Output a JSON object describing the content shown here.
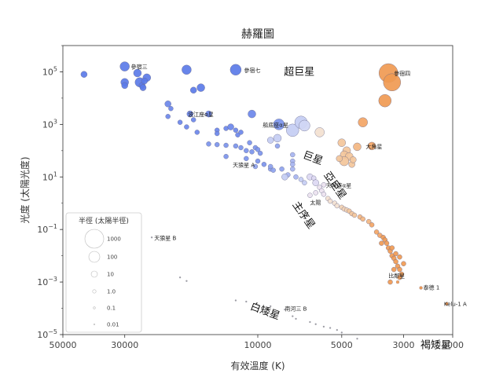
{
  "chart_data": {
    "type": "scatter",
    "title": "赫羅圖",
    "xlabel": "有效溫度 (K)",
    "ylabel": "光度 (太陽光度)",
    "xscale": "log-reversed",
    "yscale": "log",
    "xlim": [
      50000,
      2000
    ],
    "ylim": [
      1e-05,
      1000000
    ],
    "x_ticks": [
      50000,
      30000,
      10000,
      5000,
      3000,
      2000
    ],
    "x_tick_labels": [
      "50000",
      "30000",
      "10000",
      "5000",
      "3000",
      "2000"
    ],
    "y_ticks": [
      {
        "value": 100000,
        "mant": "10",
        "exp": "5"
      },
      {
        "value": 1000,
        "mant": "10",
        "exp": "3"
      },
      {
        "value": 10,
        "mant": "10",
        "exp": "1"
      },
      {
        "value": 0.1,
        "mant": "10",
        "exp": "−1"
      },
      {
        "value": 0.001,
        "mant": "10",
        "exp": "−3"
      },
      {
        "value": 1e-05,
        "mant": "10",
        "exp": "−5"
      }
    ],
    "stars": [
      {
        "t": 42000,
        "l": 80000,
        "r": 4,
        "c": "#5b7be8"
      },
      {
        "t": 30000,
        "l": 160000,
        "r": 6,
        "c": "#5b7be8"
      },
      {
        "t": 30000,
        "l": 40000,
        "r": 5,
        "c": "#5b7be8"
      },
      {
        "t": 30000,
        "l": 30000,
        "r": 4,
        "c": "#5b7be8"
      },
      {
        "t": 27000,
        "l": 90000,
        "r": 5,
        "c": "#5b7be8"
      },
      {
        "t": 26500,
        "l": 40000,
        "r": 6,
        "c": "#5b7be8"
      },
      {
        "t": 26000,
        "l": 30000,
        "r": 4,
        "c": "#5b7be8"
      },
      {
        "t": 25800,
        "l": 25000,
        "r": 4,
        "c": "#5b7be8"
      },
      {
        "t": 25000,
        "l": 60000,
        "r": 5,
        "c": "#5b7be8"
      },
      {
        "t": 25500,
        "l": 45000,
        "r": 4,
        "c": "#5b7be8"
      },
      {
        "t": 18000,
        "l": 120000,
        "r": 6,
        "c": "#5b7be8"
      },
      {
        "t": 17000,
        "l": 20000,
        "r": 4,
        "c": "#5b7be8"
      },
      {
        "t": 16000,
        "l": 25000,
        "r": 5,
        "c": "#5b7be8"
      },
      {
        "t": 12000,
        "l": 120000,
        "r": 7,
        "c": "#5b7be8"
      },
      {
        "t": 21000,
        "l": 6000,
        "r": 4,
        "c": "#6b87ea"
      },
      {
        "t": 20500,
        "l": 4000,
        "r": 3,
        "c": "#6b87ea"
      },
      {
        "t": 21000,
        "l": 2000,
        "r": 3,
        "c": "#6b87ea"
      },
      {
        "t": 19000,
        "l": 1200,
        "r": 3,
        "c": "#6b87ea"
      },
      {
        "t": 18000,
        "l": 800,
        "r": 3,
        "c": "#6b87ea"
      },
      {
        "t": 17500,
        "l": 2500,
        "r": 4,
        "c": "#6b87ea"
      },
      {
        "t": 17000,
        "l": 1500,
        "r": 3,
        "c": "#6b87ea"
      },
      {
        "t": 16500,
        "l": 500,
        "r": 3,
        "c": "#6b87ea"
      },
      {
        "t": 15000,
        "l": 2500,
        "r": 4,
        "c": "#6b87ea"
      },
      {
        "t": 14000,
        "l": 600,
        "r": 3,
        "c": "#6b87ea"
      },
      {
        "t": 14000,
        "l": 450,
        "r": 3,
        "c": "#6b87ea"
      },
      {
        "t": 13000,
        "l": 700,
        "r": 3,
        "c": "#6b87ea"
      },
      {
        "t": 12500,
        "l": 800,
        "r": 4,
        "c": "#6b87ea"
      },
      {
        "t": 12000,
        "l": 600,
        "r": 3,
        "c": "#6b87ea"
      },
      {
        "t": 11800,
        "l": 400,
        "r": 3,
        "c": "#6b87ea"
      },
      {
        "t": 11500,
        "l": 500,
        "r": 3,
        "c": "#6b87ea"
      },
      {
        "t": 10500,
        "l": 2500,
        "r": 5,
        "c": "#6b87ea"
      },
      {
        "t": 15000,
        "l": 180,
        "r": 3,
        "c": "#7b94ec"
      },
      {
        "t": 14000,
        "l": 170,
        "r": 3,
        "c": "#7b94ec"
      },
      {
        "t": 13000,
        "l": 160,
        "r": 3,
        "c": "#7b94ec"
      },
      {
        "t": 12000,
        "l": 150,
        "r": 3,
        "c": "#7b94ec"
      },
      {
        "t": 11500,
        "l": 130,
        "r": 3,
        "c": "#7b94ec"
      },
      {
        "t": 11000,
        "l": 100,
        "r": 3,
        "c": "#7b94ec"
      },
      {
        "t": 10700,
        "l": 200,
        "r": 3,
        "c": "#7b94ec"
      },
      {
        "t": 10500,
        "l": 90,
        "r": 3,
        "c": "#7b94ec"
      },
      {
        "t": 10200,
        "l": 130,
        "r": 3,
        "c": "#7b94ec"
      },
      {
        "t": 10000,
        "l": 110,
        "r": 3,
        "c": "#7b94ec"
      },
      {
        "t": 9800,
        "l": 80,
        "r": 3,
        "c": "#7b94ec"
      },
      {
        "t": 13000,
        "l": 60,
        "r": 3,
        "c": "#7b94ec"
      },
      {
        "t": 11000,
        "l": 50,
        "r": 3,
        "c": "#7b94ec"
      },
      {
        "t": 10000,
        "l": 40,
        "r": 3,
        "c": "#7b94ec"
      },
      {
        "t": 9500,
        "l": 30,
        "r": 3,
        "c": "#7b94ec"
      },
      {
        "t": 9000,
        "l": 20,
        "r": 3,
        "c": "#8ea3ee"
      },
      {
        "t": 8500,
        "l": 150,
        "r": 3,
        "c": "#8ea3ee"
      },
      {
        "t": 9000,
        "l": 25,
        "r": 3,
        "c": "#8ea3ee"
      },
      {
        "t": 8200,
        "l": 20,
        "r": 3,
        "c": "#8ea3ee"
      },
      {
        "t": 10200,
        "l": 25,
        "r": 3,
        "c": "#8ea3ee"
      },
      {
        "t": 8800,
        "l": 18,
        "r": 3,
        "c": "#8ea3ee"
      },
      {
        "t": 7500,
        "l": 70,
        "r": 3,
        "c": "#a6b4f0"
      },
      {
        "t": 7500,
        "l": 40,
        "r": 3,
        "c": "#a6b4f0"
      },
      {
        "t": 7500,
        "l": 30,
        "r": 3,
        "c": "#a6b4f0"
      },
      {
        "t": 7500,
        "l": 20,
        "r": 3,
        "c": "#a6b4f0"
      },
      {
        "t": 7800,
        "l": 12,
        "r": 3,
        "c": "#a6b4f0"
      },
      {
        "t": 7300,
        "l": 10,
        "r": 3,
        "c": "#a6b4f0"
      },
      {
        "t": 8000,
        "l": 10,
        "r": 4,
        "c": "#c4cdf3"
      },
      {
        "t": 7000,
        "l": 8,
        "r": 3,
        "c": "#c4cdf3"
      },
      {
        "t": 6800,
        "l": 6,
        "r": 3,
        "c": "#c4cdf3"
      },
      {
        "t": 6500,
        "l": 10,
        "r": 4,
        "c": "#dcd8f2"
      },
      {
        "t": 6300,
        "l": 9,
        "r": 3,
        "c": "#dcd8f2"
      },
      {
        "t": 6200,
        "l": 6,
        "r": 4,
        "c": "#dcd8f2"
      },
      {
        "t": 6000,
        "l": 4,
        "r": 3,
        "c": "#ece2ef"
      },
      {
        "t": 5900,
        "l": 3,
        "r": 3,
        "c": "#ece2ef"
      },
      {
        "t": 5800,
        "l": 5,
        "r": 3,
        "c": "#ece2ef"
      },
      {
        "t": 6500,
        "l": 2,
        "r": 3,
        "c": "#ece2ef"
      },
      {
        "t": 6200,
        "l": 2.5,
        "r": 3,
        "c": "#ece2ef"
      },
      {
        "t": 5800,
        "l": 2.2,
        "r": 3,
        "c": "#ece2ef"
      },
      {
        "t": 5600,
        "l": 1.5,
        "r": 3,
        "c": "#f3e1d0"
      },
      {
        "t": 5500,
        "l": 1.2,
        "r": 3,
        "c": "#f3e1d0"
      },
      {
        "t": 5300,
        "l": 1.0,
        "r": 3,
        "c": "#f3e1d0"
      },
      {
        "t": 5200,
        "l": 0.8,
        "r": 3,
        "c": "#f3e1d0"
      },
      {
        "t": 5000,
        "l": 0.7,
        "r": 3,
        "c": "#f3d3b3"
      },
      {
        "t": 4900,
        "l": 0.6,
        "r": 3,
        "c": "#f3d3b3"
      },
      {
        "t": 4800,
        "l": 0.55,
        "r": 3,
        "c": "#f3d3b3"
      },
      {
        "t": 4700,
        "l": 0.5,
        "r": 3,
        "c": "#f3c59a"
      },
      {
        "t": 4600,
        "l": 0.4,
        "r": 3,
        "c": "#f3c59a"
      },
      {
        "t": 4500,
        "l": 0.35,
        "r": 3,
        "c": "#f3c59a"
      },
      {
        "t": 4300,
        "l": 0.3,
        "r": 3,
        "c": "#f3b681"
      },
      {
        "t": 4200,
        "l": 0.25,
        "r": 3,
        "c": "#f3b681"
      },
      {
        "t": 4000,
        "l": 0.2,
        "r": 3,
        "c": "#f3b681"
      },
      {
        "t": 3900,
        "l": 0.15,
        "r": 3,
        "c": "#f3a565"
      },
      {
        "t": 3750,
        "l": 0.08,
        "r": 3,
        "c": "#f3a565"
      },
      {
        "t": 3650,
        "l": 0.06,
        "r": 3,
        "c": "#f3a565"
      },
      {
        "t": 3550,
        "l": 0.05,
        "r": 3,
        "c": "#f09a52"
      },
      {
        "t": 3500,
        "l": 0.04,
        "r": 3,
        "c": "#f09a52"
      },
      {
        "t": 3450,
        "l": 0.03,
        "r": 3,
        "c": "#f09a52"
      },
      {
        "t": 3400,
        "l": 0.02,
        "r": 3,
        "c": "#f09a52"
      },
      {
        "t": 3350,
        "l": 0.015,
        "r": 3,
        "c": "#f09a52"
      },
      {
        "t": 3300,
        "l": 0.01,
        "r": 3,
        "c": "#f09a52"
      },
      {
        "t": 3250,
        "l": 0.008,
        "r": 3,
        "c": "#f09a52"
      },
      {
        "t": 3200,
        "l": 0.006,
        "r": 3,
        "c": "#f09a52"
      },
      {
        "t": 3150,
        "l": 0.004,
        "r": 3,
        "c": "#f09a52"
      },
      {
        "t": 3100,
        "l": 0.003,
        "r": 3,
        "c": "#f09a52"
      },
      {
        "t": 3050,
        "l": 0.002,
        "r": 3,
        "c": "#f09a52"
      },
      {
        "t": 3600,
        "l": 0.03,
        "r": 3,
        "c": "#f09a52"
      },
      {
        "t": 3300,
        "l": 0.02,
        "r": 3,
        "c": "#f09a52"
      },
      {
        "t": 3200,
        "l": 0.012,
        "r": 3,
        "c": "#f09a52"
      },
      {
        "t": 3100,
        "l": 0.009,
        "r": 3,
        "c": "#f09a52"
      },
      {
        "t": 3000,
        "l": 0.005,
        "r": 3,
        "c": "#f09a52"
      },
      {
        "t": 3250,
        "l": 0.003,
        "r": 3,
        "c": "#f09a52"
      },
      {
        "t": 3350,
        "l": 0.001,
        "r": 3,
        "c": "#f09a52"
      },
      {
        "t": 3100,
        "l": 0.0015,
        "r": 3,
        "c": "#f09a52"
      },
      {
        "t": 3150,
        "l": 0.001,
        "r": 2,
        "c": "#f09a52"
      },
      {
        "t": 2600,
        "l": 0.0006,
        "r": 2,
        "c": "#e8904a"
      },
      {
        "t": 2100,
        "l": 0.00015,
        "r": 2,
        "c": "#e8904a"
      },
      {
        "t": 9000,
        "l": 250,
        "r": 4,
        "c": "#c4cdf3"
      },
      {
        "t": 8500,
        "l": 300,
        "r": 5,
        "c": "#c4cdf3"
      },
      {
        "t": 7500,
        "l": 600,
        "r": 8,
        "c": "#c4cdf3"
      },
      {
        "t": 7000,
        "l": 1200,
        "r": 8,
        "c": "#c4cdf3"
      },
      {
        "t": 6800,
        "l": 900,
        "r": 7,
        "c": "#d0d6f4"
      },
      {
        "t": 8400,
        "l": 1000,
        "r": 7,
        "c": "#7b94ec"
      },
      {
        "t": 6000,
        "l": 500,
        "r": 6,
        "c": "#f3e1d0"
      },
      {
        "t": 5000,
        "l": 200,
        "r": 5,
        "c": "#f3c59a"
      },
      {
        "t": 4800,
        "l": 100,
        "r": 5,
        "c": "#f3c59a"
      },
      {
        "t": 4900,
        "l": 70,
        "r": 5,
        "c": "#f3c59a"
      },
      {
        "t": 4700,
        "l": 60,
        "r": 5,
        "c": "#f3c59a"
      },
      {
        "t": 4900,
        "l": 40,
        "r": 6,
        "c": "#f3c59a"
      },
      {
        "t": 5100,
        "l": 50,
        "r": 4,
        "c": "#f3c59a"
      },
      {
        "t": 4600,
        "l": 30,
        "r": 4,
        "c": "#f3c59a"
      },
      {
        "t": 4550,
        "l": 45,
        "r": 4,
        "c": "#f3c59a"
      },
      {
        "t": 4400,
        "l": 140,
        "r": 5,
        "c": "#f3b681"
      },
      {
        "t": 4200,
        "l": 1200,
        "r": 6,
        "c": "#f3a565"
      },
      {
        "t": 3900,
        "l": 150,
        "r": 5,
        "c": "#f3a565"
      },
      {
        "t": 3400,
        "l": 90000,
        "r": 12,
        "c": "#f09a52"
      },
      {
        "t": 3300,
        "l": 40000,
        "r": 11,
        "c": "#f09a52"
      },
      {
        "t": 3500,
        "l": 8000,
        "r": 8,
        "c": "#f09a52"
      },
      {
        "t": 24000,
        "l": 0.05,
        "r": 1,
        "c": "#999999"
      },
      {
        "t": 19000,
        "l": 0.0015,
        "r": 1,
        "c": "#999999"
      },
      {
        "t": 18000,
        "l": 0.0011,
        "r": 1,
        "c": "#999999"
      },
      {
        "t": 12000,
        "l": 0.0002,
        "r": 1,
        "c": "#999999"
      },
      {
        "t": 11000,
        "l": 0.00018,
        "r": 1,
        "c": "#999999"
      },
      {
        "t": 9000,
        "l": 0.00012,
        "r": 1,
        "c": "#999999"
      },
      {
        "t": 8000,
        "l": 9e-05,
        "r": 1,
        "c": "#999999"
      },
      {
        "t": 7500,
        "l": 5e-05,
        "r": 1,
        "c": "#999999"
      },
      {
        "t": 7300,
        "l": 4e-05,
        "r": 1,
        "c": "#999999"
      },
      {
        "t": 6500,
        "l": 3e-05,
        "r": 1,
        "c": "#999999"
      },
      {
        "t": 6200,
        "l": 2.5e-05,
        "r": 1,
        "c": "#999999"
      },
      {
        "t": 5800,
        "l": 2e-05,
        "r": 1,
        "c": "#999999"
      },
      {
        "t": 5500,
        "l": 1.8e-05,
        "r": 1,
        "c": "#999999"
      },
      {
        "t": 5200,
        "l": 1.5e-05,
        "r": 1,
        "c": "#999999"
      },
      {
        "t": 5000,
        "l": 1.2e-05,
        "r": 1,
        "c": "#999999"
      },
      {
        "t": 4400,
        "l": 7e-06,
        "r": 1,
        "c": "#999999"
      }
    ],
    "star_labels": [
      {
        "text": "參宿三",
        "t": 28500,
        "l": 160000
      },
      {
        "text": "參宿七",
        "t": 11200,
        "l": 120000
      },
      {
        "text": "參宿四",
        "t": 3250,
        "l": 90000
      },
      {
        "text": "船底座α星",
        "t": 9600,
        "l": 1000
      },
      {
        "text": "波江座α星",
        "t": 17800,
        "l": 2500
      },
      {
        "text": "大角星",
        "t": 4100,
        "l": 150
      },
      {
        "text": "天狼星 A",
        "t": 12300,
        "l": 30
      },
      {
        "text": "天琴座α星",
        "t": 5700,
        "l": 5
      },
      {
        "text": "太陽",
        "t": 6500,
        "l": 1.1
      },
      {
        "text": "天狼星 B",
        "t": 23500,
        "l": 0.05
      },
      {
        "text": "南河三 B",
        "t": 8000,
        "l": 0.0001
      },
      {
        "text": "比鄰星",
        "t": 3400,
        "l": 0.0018
      },
      {
        "text": "泰德 1",
        "t": 2550,
        "l": 0.00065
      },
      {
        "text": "Kelu-1 A",
        "t": 2150,
        "l": 0.00015
      }
    ],
    "regions": [
      {
        "text": "超巨星",
        "t": 7100,
        "l": 75000,
        "rot": 0,
        "size": 14
      },
      {
        "text": "巨星",
        "t": 6400,
        "l": 40,
        "rot": 20,
        "size": 13
      },
      {
        "text": "亞巨星",
        "t": 5400,
        "l": 4,
        "rot": 55,
        "size": 13
      },
      {
        "text": "主序星",
        "t": 7000,
        "l": 0.3,
        "rot": 55,
        "size": 13
      },
      {
        "text": "白矮星",
        "t": 9500,
        "l": 6e-05,
        "rot": 20,
        "size": 13
      },
      {
        "text": "褐矮星",
        "t": 2300,
        "l": 3e-06,
        "rot": 0,
        "size": 13
      }
    ],
    "legend": {
      "title": "半徑 (太陽半徑)",
      "position": "bottom-left",
      "entries": [
        {
          "label": "1000",
          "r": 12
        },
        {
          "label": "100",
          "r": 7
        },
        {
          "label": "10",
          "r": 4
        },
        {
          "label": "1.0",
          "r": 2.2
        },
        {
          "label": "0.1",
          "r": 1.3
        },
        {
          "label": "0.01",
          "r": 0.8
        }
      ]
    }
  }
}
